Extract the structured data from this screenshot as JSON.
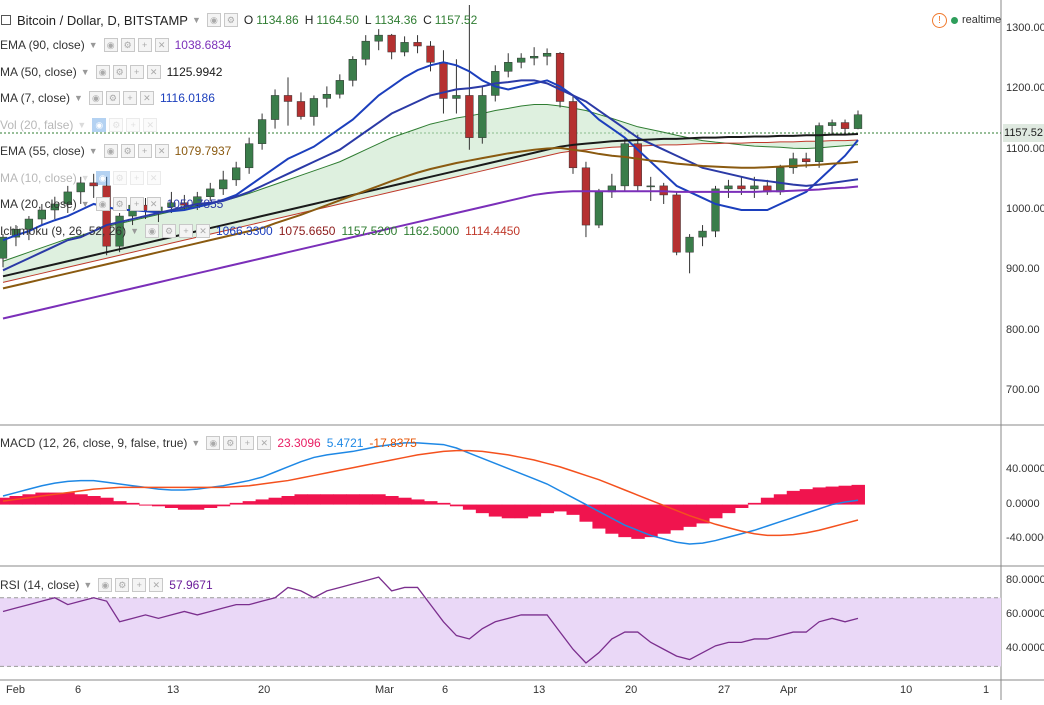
{
  "header": {
    "title": "Bitcoin / Dollar, D, BITSTAMP",
    "ohlc_labels": [
      "O",
      "H",
      "L",
      "C"
    ],
    "ohlc_values": [
      "1134.86",
      "1164.50",
      "1134.36",
      "1157.52"
    ],
    "status": "realtime",
    "status_color": "#2e9e5b",
    "alert_color": "#f07a2e"
  },
  "legend": [
    {
      "label": "EMA (90, close)",
      "value": "1038.6834",
      "value_color": "#7b2fb9",
      "icon": "eye-icon",
      "dim": false
    },
    {
      "label": "MA (50, close)",
      "value": "1125.9942",
      "value_color": "#1a1a1a",
      "icon": "eye-icon",
      "dim": false
    },
    {
      "label": "MA (7, close)",
      "value": "1116.0186",
      "value_color": "#1c3fbd",
      "icon": "eye-icon",
      "dim": false
    },
    {
      "label": "Vol (20, false)",
      "value": "",
      "value_color": "#999999",
      "icon": "eye-off-icon",
      "dim": true
    },
    {
      "label": "EMA (55, close)",
      "value": "1079.7937",
      "value_color": "#8a5a10",
      "icon": "eye-icon",
      "dim": false
    },
    {
      "label": "MA (10, close)",
      "value": "",
      "value_color": "#999999",
      "icon": "eye-off-icon",
      "dim": true
    },
    {
      "label": "MA (20, close)",
      "value": "1050.7855",
      "value_color": "#2b3aa6",
      "icon": "eye-icon",
      "dim": false
    },
    {
      "label": "Ichimoku (9, 26, 52, 26)",
      "values": [
        "1066.3300",
        "1075.6650",
        "1157.5200",
        "1162.5000",
        "1114.4450"
      ],
      "value_colors": [
        "#1c3fbd",
        "#8b1a1a",
        "#2f7d32",
        "#2f7d32",
        "#c0392b"
      ],
      "icon": "eye-icon",
      "dim": false
    }
  ],
  "price_axis": {
    "ticks": [
      "1300.00",
      "1200.00",
      "1100.00",
      "1000.00",
      "900.00",
      "800.00",
      "700.00"
    ],
    "last_price": "1157.52"
  },
  "macd": {
    "label": "MACD (12, 26, close, 9, false, true)",
    "values": [
      "23.3096",
      "5.4721",
      "-17.8375"
    ],
    "value_colors": [
      "#e91e63",
      "#1e88e5",
      "#e65100"
    ],
    "ticks": [
      "40.0000",
      "0.0000",
      "-40.0000"
    ]
  },
  "rsi": {
    "label": "RSI (14, close)",
    "value": "57.9671",
    "value_color": "#6a1b9a",
    "ticks": [
      "80.0000",
      "60.0000",
      "40.0000"
    ]
  },
  "date_axis": [
    "Feb",
    "6",
    "13",
    "20",
    "Mar",
    "6",
    "13",
    "20",
    "27",
    "Apr",
    "10",
    "1"
  ],
  "chart_data": {
    "type": "candlestick",
    "instrument": "Bitcoin / Dollar, D, BITSTAMP",
    "ylim": [
      660,
      1340
    ],
    "candles": [
      {
        "o": 920,
        "h": 960,
        "l": 905,
        "c": 955
      },
      {
        "o": 955,
        "h": 975,
        "l": 940,
        "c": 968
      },
      {
        "o": 968,
        "h": 990,
        "l": 950,
        "c": 985
      },
      {
        "o": 985,
        "h": 1010,
        "l": 975,
        "c": 1000
      },
      {
        "o": 1000,
        "h": 1022,
        "l": 985,
        "c": 1010
      },
      {
        "o": 1010,
        "h": 1040,
        "l": 995,
        "c": 1030
      },
      {
        "o": 1030,
        "h": 1055,
        "l": 1010,
        "c": 1045
      },
      {
        "o": 1045,
        "h": 1060,
        "l": 1020,
        "c": 1040
      },
      {
        "o": 1040,
        "h": 1055,
        "l": 925,
        "c": 940
      },
      {
        "o": 940,
        "h": 995,
        "l": 930,
        "c": 990
      },
      {
        "o": 990,
        "h": 1020,
        "l": 975,
        "c": 1008
      },
      {
        "o": 1008,
        "h": 1020,
        "l": 985,
        "c": 998
      },
      {
        "o": 998,
        "h": 1015,
        "l": 980,
        "c": 1005
      },
      {
        "o": 1005,
        "h": 1030,
        "l": 995,
        "c": 1012
      },
      {
        "o": 1012,
        "h": 1025,
        "l": 1000,
        "c": 1008
      },
      {
        "o": 1008,
        "h": 1030,
        "l": 1000,
        "c": 1022
      },
      {
        "o": 1022,
        "h": 1045,
        "l": 1015,
        "c": 1035
      },
      {
        "o": 1035,
        "h": 1065,
        "l": 1025,
        "c": 1050
      },
      {
        "o": 1050,
        "h": 1080,
        "l": 1040,
        "c": 1070
      },
      {
        "o": 1070,
        "h": 1120,
        "l": 1060,
        "c": 1110
      },
      {
        "o": 1110,
        "h": 1160,
        "l": 1100,
        "c": 1150
      },
      {
        "o": 1150,
        "h": 1200,
        "l": 1135,
        "c": 1190
      },
      {
        "o": 1190,
        "h": 1220,
        "l": 1140,
        "c": 1180
      },
      {
        "o": 1180,
        "h": 1195,
        "l": 1150,
        "c": 1155
      },
      {
        "o": 1155,
        "h": 1190,
        "l": 1140,
        "c": 1185
      },
      {
        "o": 1185,
        "h": 1205,
        "l": 1170,
        "c": 1192
      },
      {
        "o": 1192,
        "h": 1225,
        "l": 1185,
        "c": 1215
      },
      {
        "o": 1215,
        "h": 1255,
        "l": 1205,
        "c": 1250
      },
      {
        "o": 1250,
        "h": 1290,
        "l": 1240,
        "c": 1280
      },
      {
        "o": 1280,
        "h": 1300,
        "l": 1265,
        "c": 1290
      },
      {
        "o": 1290,
        "h": 1292,
        "l": 1250,
        "c": 1262
      },
      {
        "o": 1262,
        "h": 1288,
        "l": 1255,
        "c": 1278
      },
      {
        "o": 1278,
        "h": 1290,
        "l": 1260,
        "c": 1272
      },
      {
        "o": 1272,
        "h": 1280,
        "l": 1230,
        "c": 1245
      },
      {
        "o": 1245,
        "h": 1265,
        "l": 1160,
        "c": 1185
      },
      {
        "o": 1185,
        "h": 1250,
        "l": 1160,
        "c": 1190
      },
      {
        "o": 1190,
        "h": 1340,
        "l": 1100,
        "c": 1120
      },
      {
        "o": 1120,
        "h": 1205,
        "l": 1110,
        "c": 1190
      },
      {
        "o": 1190,
        "h": 1240,
        "l": 1180,
        "c": 1230
      },
      {
        "o": 1230,
        "h": 1260,
        "l": 1220,
        "c": 1245
      },
      {
        "o": 1245,
        "h": 1260,
        "l": 1235,
        "c": 1252
      },
      {
        "o": 1252,
        "h": 1270,
        "l": 1240,
        "c": 1255
      },
      {
        "o": 1255,
        "h": 1268,
        "l": 1240,
        "c": 1260
      },
      {
        "o": 1260,
        "h": 1262,
        "l": 1170,
        "c": 1180
      },
      {
        "o": 1180,
        "h": 1190,
        "l": 1060,
        "c": 1070
      },
      {
        "o": 1070,
        "h": 1080,
        "l": 955,
        "c": 975
      },
      {
        "o": 975,
        "h": 1035,
        "l": 970,
        "c": 1030
      },
      {
        "o": 1030,
        "h": 1060,
        "l": 1020,
        "c": 1040
      },
      {
        "o": 1040,
        "h": 1120,
        "l": 1030,
        "c": 1110
      },
      {
        "o": 1110,
        "h": 1125,
        "l": 1030,
        "c": 1040
      },
      {
        "o": 1040,
        "h": 1055,
        "l": 1015,
        "c": 1040
      },
      {
        "o": 1040,
        "h": 1045,
        "l": 1010,
        "c": 1025
      },
      {
        "o": 1025,
        "h": 1030,
        "l": 925,
        "c": 930
      },
      {
        "o": 930,
        "h": 960,
        "l": 895,
        "c": 955
      },
      {
        "o": 955,
        "h": 975,
        "l": 940,
        "c": 965
      },
      {
        "o": 965,
        "h": 1040,
        "l": 955,
        "c": 1035
      },
      {
        "o": 1035,
        "h": 1050,
        "l": 1020,
        "c": 1040
      },
      {
        "o": 1040,
        "h": 1055,
        "l": 1025,
        "c": 1035
      },
      {
        "o": 1035,
        "h": 1055,
        "l": 1020,
        "c": 1040
      },
      {
        "o": 1040,
        "h": 1050,
        "l": 1025,
        "c": 1030
      },
      {
        "o": 1030,
        "h": 1075,
        "l": 1025,
        "c": 1070
      },
      {
        "o": 1070,
        "h": 1095,
        "l": 1060,
        "c": 1085
      },
      {
        "o": 1085,
        "h": 1095,
        "l": 1070,
        "c": 1080
      },
      {
        "o": 1080,
        "h": 1145,
        "l": 1070,
        "c": 1140
      },
      {
        "o": 1140,
        "h": 1150,
        "l": 1125,
        "c": 1145
      },
      {
        "o": 1145,
        "h": 1150,
        "l": 1125,
        "c": 1135
      },
      {
        "o": 1135,
        "h": 1165,
        "l": 1134,
        "c": 1158
      }
    ],
    "indicators": [
      {
        "name": "MA (7, close)",
        "color": "#1c3fbd",
        "values": [
          950,
          958,
          965,
          975,
          983,
          990,
          1000,
          1010,
          1005,
          1000,
          1000,
          998,
          996,
          998,
          1000,
          1005,
          1010,
          1017,
          1025,
          1040,
          1055,
          1070,
          1085,
          1095,
          1105,
          1120,
          1135,
          1150,
          1170,
          1190,
          1205,
          1220,
          1232,
          1240,
          1245,
          1240,
          1230,
          1215,
          1205,
          1200,
          1205,
          1210,
          1215,
          1205,
          1190,
          1170,
          1150,
          1135,
          1120,
          1100,
          1080,
          1060,
          1040,
          1030,
          1020,
          1010,
          1005,
          1000,
          1000,
          1000,
          1010,
          1020,
          1030,
          1050,
          1070,
          1090,
          1116
        ]
      },
      {
        "name": "MA (20, close)",
        "color": "#2b3aa6",
        "values": [
          900,
          910,
          920,
          930,
          940,
          950,
          955,
          965,
          975,
          980,
          985,
          990,
          995,
          1000,
          1005,
          1010,
          1012,
          1015,
          1022,
          1030,
          1040,
          1050,
          1060,
          1070,
          1080,
          1090,
          1100,
          1115,
          1130,
          1145,
          1160,
          1170,
          1180,
          1190,
          1195,
          1200,
          1202,
          1205,
          1210,
          1212,
          1215,
          1215,
          1210,
          1200,
          1190,
          1180,
          1165,
          1150,
          1135,
          1120,
          1110,
          1100,
          1090,
          1080,
          1070,
          1065,
          1060,
          1055,
          1050,
          1048,
          1045,
          1042,
          1040,
          1042,
          1045,
          1048,
          1051
        ]
      },
      {
        "name": "MA (50, close)",
        "color": "#1a1a1a",
        "values": [
          890,
          895,
          900,
          905,
          910,
          915,
          920,
          925,
          930,
          935,
          940,
          945,
          950,
          955,
          960,
          965,
          970,
          975,
          980,
          985,
          990,
          995,
          1000,
          1005,
          1010,
          1015,
          1020,
          1025,
          1030,
          1035,
          1040,
          1045,
          1050,
          1055,
          1060,
          1065,
          1070,
          1075,
          1080,
          1085,
          1090,
          1095,
          1100,
          1105,
          1108,
          1110,
          1112,
          1114,
          1115,
          1116,
          1117,
          1118,
          1118,
          1119,
          1120,
          1120,
          1121,
          1121,
          1122,
          1122,
          1123,
          1123,
          1124,
          1124,
          1125,
          1125,
          1126
        ]
      },
      {
        "name": "EMA (55, close)",
        "color": "#8a5a10",
        "values": [
          870,
          875,
          880,
          885,
          890,
          895,
          900,
          905,
          910,
          915,
          920,
          925,
          930,
          935,
          940,
          945,
          950,
          955,
          960,
          965,
          970,
          978,
          985,
          992,
          1000,
          1008,
          1016,
          1024,
          1032,
          1040,
          1048,
          1055,
          1062,
          1068,
          1073,
          1078,
          1082,
          1086,
          1090,
          1094,
          1097,
          1100,
          1102,
          1103,
          1100,
          1097,
          1093,
          1090,
          1088,
          1085,
          1082,
          1080,
          1077,
          1075,
          1073,
          1072,
          1071,
          1070,
          1070,
          1071,
          1072,
          1073,
          1074,
          1075,
          1077,
          1078,
          1080
        ]
      },
      {
        "name": "EMA (90, close)",
        "color": "#7b2fb9",
        "values": [
          820,
          825,
          830,
          835,
          840,
          845,
          850,
          855,
          860,
          865,
          870,
          875,
          880,
          885,
          890,
          895,
          900,
          905,
          910,
          915,
          920,
          925,
          930,
          935,
          940,
          945,
          950,
          955,
          960,
          965,
          970,
          975,
          980,
          985,
          990,
          995,
          1000,
          1005,
          1010,
          1015,
          1020,
          1025,
          1028,
          1030,
          1031,
          1031,
          1031,
          1031,
          1031,
          1031,
          1031,
          1031,
          1030,
          1030,
          1030,
          1030,
          1030,
          1030,
          1030,
          1031,
          1031,
          1032,
          1033,
          1034,
          1036,
          1037,
          1039
        ]
      }
    ],
    "macd": {
      "ylim": [
        -60,
        80
      ],
      "macd_line": [
        10,
        14,
        18,
        22,
        25,
        27,
        28,
        28,
        26,
        24,
        22,
        20,
        18,
        17,
        17,
        18,
        20,
        22,
        25,
        28,
        32,
        38,
        44,
        50,
        55,
        58,
        60,
        62,
        65,
        68,
        70,
        72,
        72,
        71,
        70,
        66,
        60,
        54,
        48,
        42,
        36,
        30,
        24,
        16,
        8,
        0,
        -8,
        -16,
        -24,
        -30,
        -36,
        -40,
        -44,
        -46,
        -45,
        -42,
        -38,
        -34,
        -30,
        -25,
        -20,
        -15,
        -10,
        -5,
        0,
        3,
        5
      ],
      "signal_line": [
        4,
        6,
        8,
        10,
        12,
        14,
        16,
        18,
        19,
        20,
        20,
        20,
        20,
        20,
        20,
        20,
        20,
        20,
        21,
        22,
        24,
        26,
        28,
        31,
        34,
        37,
        40,
        43,
        46,
        49,
        52,
        55,
        58,
        60,
        62,
        63,
        63,
        62,
        60,
        58,
        55,
        52,
        48,
        44,
        39,
        34,
        29,
        23,
        17,
        11,
        5,
        -1,
        -7,
        -13,
        -18,
        -23,
        -27,
        -31,
        -34,
        -36,
        -36,
        -35,
        -33,
        -30,
        -26,
        -22,
        -18
      ],
      "histogram": [
        8,
        10,
        12,
        14,
        14,
        14,
        12,
        10,
        8,
        4,
        2,
        0,
        -2,
        -4,
        -6,
        -6,
        -4,
        -2,
        2,
        4,
        6,
        8,
        10,
        12,
        12,
        12,
        12,
        12,
        12,
        12,
        10,
        8,
        6,
        4,
        2,
        -2,
        -6,
        -10,
        -14,
        -16,
        -16,
        -14,
        -10,
        -8,
        -12,
        -20,
        -28,
        -34,
        -38,
        -40,
        -38,
        -34,
        -30,
        -26,
        -22,
        -16,
        -10,
        -4,
        2,
        8,
        12,
        16,
        18,
        20,
        21,
        22,
        23
      ]
    },
    "rsi": {
      "ylim": [
        25,
        85
      ],
      "band": [
        30,
        70
      ],
      "values": [
        62,
        64,
        66,
        68,
        70,
        66,
        68,
        70,
        68,
        56,
        58,
        60,
        58,
        60,
        62,
        60,
        62,
        64,
        66,
        66,
        68,
        70,
        76,
        74,
        70,
        74,
        76,
        78,
        80,
        82,
        74,
        76,
        76,
        66,
        56,
        48,
        46,
        52,
        56,
        58,
        60,
        60,
        60,
        50,
        40,
        32,
        38,
        46,
        50,
        50,
        44,
        40,
        36,
        34,
        38,
        42,
        44,
        44,
        46,
        46,
        48,
        50,
        50,
        56,
        58,
        56,
        58
      ]
    }
  }
}
